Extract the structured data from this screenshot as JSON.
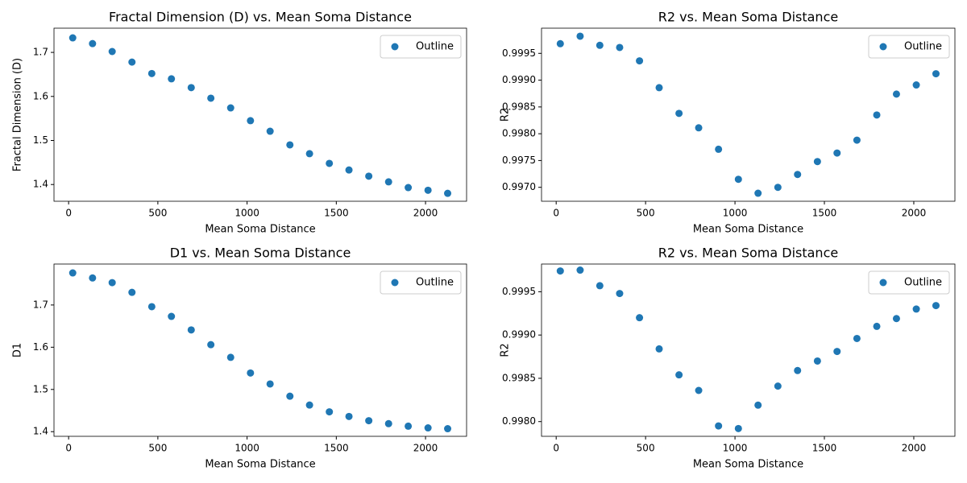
{
  "chart_data": [
    {
      "type": "scatter",
      "title": "Fractal Dimension (D) vs. Mean Soma Distance",
      "xlabel": "Mean Soma Distance",
      "ylabel": "Fractal Dimension (D)",
      "x": [
        23,
        134,
        244,
        355,
        466,
        576,
        687,
        797,
        908,
        1019,
        1129,
        1240,
        1350,
        1461,
        1571,
        1682,
        1793,
        1903,
        2014,
        2124
      ],
      "series": [
        {
          "name": "Outline",
          "color": "#1f77b4",
          "values": [
            1.733,
            1.72,
            1.702,
            1.678,
            1.652,
            1.64,
            1.62,
            1.596,
            1.574,
            1.545,
            1.521,
            1.49,
            1.47,
            1.448,
            1.433,
            1.419,
            1.406,
            1.393,
            1.387,
            1.38
          ]
        }
      ],
      "xlim": [
        -82,
        2230
      ],
      "ylim": [
        1.362,
        1.755
      ],
      "xticks": [
        0,
        500,
        1000,
        1500,
        2000
      ],
      "yticks": [
        {
          "value": 1.4,
          "label": "1.4"
        },
        {
          "value": 1.5,
          "label": "1.5"
        },
        {
          "value": 1.6,
          "label": "1.6"
        },
        {
          "value": 1.7,
          "label": "1.7"
        }
      ],
      "legend": "upper right"
    },
    {
      "type": "scatter",
      "title": "R2 vs. Mean Soma Distance",
      "xlabel": "Mean Soma Distance",
      "ylabel": "R2",
      "x": [
        23,
        134,
        244,
        355,
        466,
        576,
        687,
        797,
        908,
        1019,
        1129,
        1240,
        1350,
        1461,
        1571,
        1682,
        1793,
        1903,
        2014,
        2124
      ],
      "series": [
        {
          "name": "Outline",
          "color": "#1f77b4",
          "values": [
            0.99968,
            0.99982,
            0.99965,
            0.99961,
            0.99936,
            0.99886,
            0.99838,
            0.99811,
            0.99771,
            0.99715,
            0.99689,
            0.997,
            0.99724,
            0.99748,
            0.99764,
            0.99788,
            0.99835,
            0.99874,
            0.99891,
            0.99912
          ]
        }
      ],
      "xlim": [
        -82,
        2230
      ],
      "ylim": [
        0.99674,
        0.99997
      ],
      "xticks": [
        0,
        500,
        1000,
        1500,
        2000
      ],
      "yticks": [
        {
          "value": 0.997,
          "label": "0.9970"
        },
        {
          "value": 0.9975,
          "label": "0.9975"
        },
        {
          "value": 0.998,
          "label": "0.9980"
        },
        {
          "value": 0.9985,
          "label": "0.9985"
        },
        {
          "value": 0.999,
          "label": "0.9990"
        },
        {
          "value": 0.9995,
          "label": "0.9995"
        }
      ],
      "legend": "upper right"
    },
    {
      "type": "scatter",
      "title": "D1 vs. Mean Soma Distance",
      "xlabel": "Mean Soma Distance",
      "ylabel": "D1",
      "x": [
        23,
        134,
        244,
        355,
        466,
        576,
        687,
        797,
        908,
        1019,
        1129,
        1240,
        1350,
        1461,
        1571,
        1682,
        1793,
        1903,
        2014,
        2124
      ],
      "series": [
        {
          "name": "Outline",
          "color": "#1f77b4",
          "values": [
            1.776,
            1.764,
            1.753,
            1.73,
            1.696,
            1.673,
            1.641,
            1.606,
            1.576,
            1.539,
            1.513,
            1.484,
            1.463,
            1.447,
            1.436,
            1.426,
            1.419,
            1.413,
            1.409,
            1.407
          ]
        }
      ],
      "xlim": [
        -82,
        2230
      ],
      "ylim": [
        1.389,
        1.797
      ],
      "xticks": [
        0,
        500,
        1000,
        1500,
        2000
      ],
      "yticks": [
        {
          "value": 1.4,
          "label": "1.4"
        },
        {
          "value": 1.5,
          "label": "1.5"
        },
        {
          "value": 1.6,
          "label": "1.6"
        },
        {
          "value": 1.7,
          "label": "1.7"
        }
      ],
      "legend": "upper right"
    },
    {
      "type": "scatter",
      "title": "R2 vs. Mean Soma Distance",
      "xlabel": "Mean Soma Distance",
      "ylabel": "R2",
      "x": [
        23,
        134,
        244,
        355,
        466,
        576,
        687,
        797,
        908,
        1019,
        1129,
        1240,
        1350,
        1461,
        1571,
        1682,
        1793,
        1903,
        2014,
        2124
      ],
      "series": [
        {
          "name": "Outline",
          "color": "#1f77b4",
          "values": [
            0.99974,
            0.99975,
            0.99957,
            0.99948,
            0.9992,
            0.99884,
            0.99854,
            0.99836,
            0.99795,
            0.99792,
            0.99819,
            0.99841,
            0.99859,
            0.9987,
            0.99881,
            0.99896,
            0.9991,
            0.99919,
            0.9993,
            0.99934
          ]
        }
      ],
      "xlim": [
        -82,
        2230
      ],
      "ylim": [
        0.99783,
        0.99982
      ],
      "xticks": [
        0,
        500,
        1000,
        1500,
        2000
      ],
      "yticks": [
        {
          "value": 0.998,
          "label": "0.9980"
        },
        {
          "value": 0.9985,
          "label": "0.9985"
        },
        {
          "value": 0.999,
          "label": "0.9990"
        },
        {
          "value": 0.9995,
          "label": "0.9995"
        }
      ],
      "legend": "upper right"
    }
  ]
}
